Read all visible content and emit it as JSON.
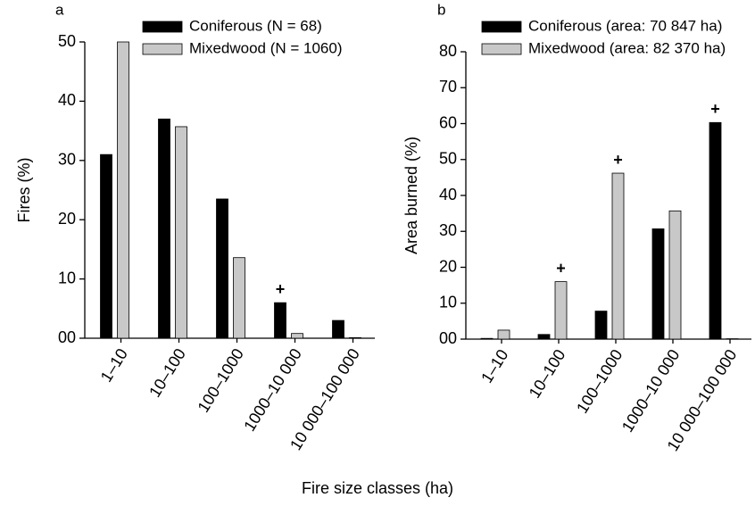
{
  "chart_data": [
    {
      "type": "bar",
      "panel": "a",
      "ylabel": "Fires (%)",
      "categories": [
        "1–10",
        "10–100",
        "100–1000",
        "1000–10 000",
        "10 000–100 000"
      ],
      "series": [
        {
          "name": "Coniferous (N = 68)",
          "color": "#000000",
          "values": [
            31,
            37,
            23.5,
            6,
            3
          ]
        },
        {
          "name": "Mixedwood (N = 1060)",
          "color": "#c8c8c8",
          "values": [
            50,
            35.7,
            13.6,
            0.8,
            0.1
          ]
        }
      ],
      "ylim": [
        0,
        50
      ],
      "yticks": [
        {
          "value": 0,
          "label": "00"
        },
        10,
        20,
        30,
        40,
        50
      ],
      "annotations": [
        {
          "text": "+",
          "category": "1000–10 000",
          "series": "Coniferous (N = 68)"
        }
      ]
    },
    {
      "type": "bar",
      "panel": "b",
      "ylabel": "Area burned (%)",
      "categories": [
        "1–10",
        "10–100",
        "100–1000",
        "1000–10 000",
        "10 000–100 000"
      ],
      "series": [
        {
          "name": "Coniferous (area: 70 847 ha)",
          "color": "#000000",
          "values": [
            0.2,
            1.3,
            7.8,
            30.7,
            60.3
          ]
        },
        {
          "name": "Mixedwood (area: 82 370 ha)",
          "color": "#c8c8c8",
          "values": [
            2.5,
            16,
            46.2,
            35.7,
            0.1
          ]
        }
      ],
      "ylim": [
        0,
        80
      ],
      "yticks": [
        {
          "value": 0,
          "label": "00"
        },
        10,
        20,
        30,
        40,
        50,
        60,
        70,
        80
      ],
      "annotations": [
        {
          "text": "+",
          "category": "10–100",
          "series": "Mixedwood (area: 82 370 ha)"
        },
        {
          "text": "+",
          "category": "100–1000",
          "series": "Mixedwood (area: 82 370 ha)"
        },
        {
          "text": "+",
          "category": "10 000–100 000",
          "series": "Coniferous (area: 70 847 ha)"
        }
      ]
    }
  ],
  "xlabel": "Fire size classes (ha)"
}
